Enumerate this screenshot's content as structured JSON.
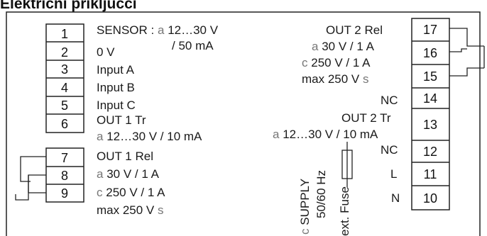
{
  "heading": "Električni priključci",
  "terminals_left": [
    {
      "num": "1"
    },
    {
      "num": "2"
    },
    {
      "num": "3"
    },
    {
      "num": "4"
    },
    {
      "num": "5"
    },
    {
      "num": "6"
    },
    {
      "num": "7"
    },
    {
      "num": "8"
    },
    {
      "num": "9"
    }
  ],
  "terminals_right": [
    {
      "num": "17"
    },
    {
      "num": "16"
    },
    {
      "num": "15"
    },
    {
      "num": "14"
    },
    {
      "num": "13"
    },
    {
      "num": "12"
    },
    {
      "num": "11"
    },
    {
      "num": "10"
    }
  ],
  "labels": {
    "sensor": "SENSOR :",
    "sensor_sym": "a",
    "sensor_v": "12…30 V",
    "sensor_ma": "/ 50 mA",
    "zero_v": "0 V",
    "input_a": "Input A",
    "input_b": "Input B",
    "input_c": "Input C",
    "out1_tr": "OUT 1 Tr",
    "out1_tr_sym": "a",
    "out1_tr_spec": "12…30 V / 10 mA",
    "out1_rel": "OUT 1 Rel",
    "out1_rel_sym1": "a",
    "out1_rel_spec1": "30 V / 1 A",
    "out1_rel_sym2": "c",
    "out1_rel_spec2": "250 V / 1 A",
    "out1_rel_max": "max 250 V",
    "out1_rel_max_sym": "s",
    "out2_rel": "OUT 2 Rel",
    "out2_rel_sym1": "a",
    "out2_rel_spec1": "30 V / 1 A",
    "out2_rel_sym2": "c",
    "out2_rel_spec2": "250 V / 1 A",
    "out2_rel_max": "max 250 V",
    "out2_rel_max_sym": "s",
    "nc_14": "NC",
    "out2_tr": "OUT 2 Tr",
    "out2_tr_sym": "a",
    "out2_tr_spec": "12…30 V / 10 mA",
    "nc_12": "NC",
    "l": "L",
    "n": "N",
    "supply_sym": "c",
    "supply": "SUPPLY",
    "freq": "50/60 Hz",
    "fuse": "ext. Fuse"
  }
}
